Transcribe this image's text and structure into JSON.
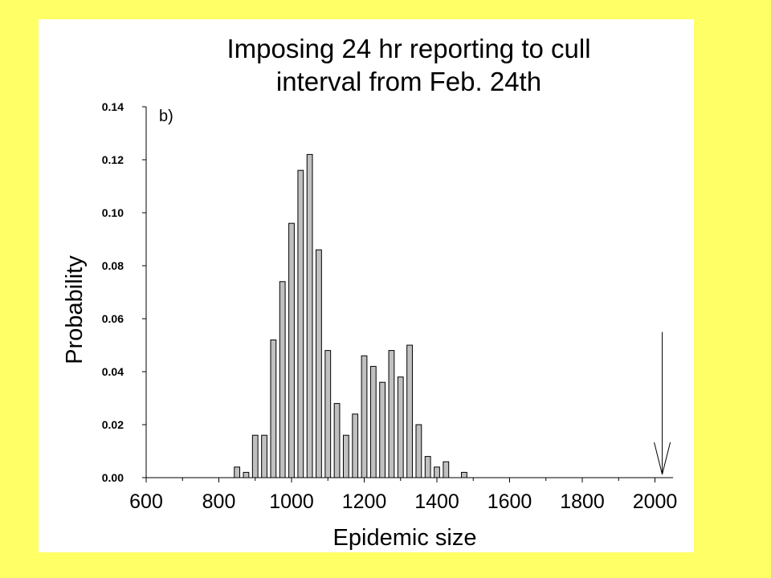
{
  "chart_data": {
    "type": "bar",
    "title": [
      "Imposing 24 hr reporting to cull",
      "interval from Feb. 24th"
    ],
    "panel_label": "b)",
    "xlabel": "Epidemic size",
    "ylabel": "Probability",
    "xlim": [
      600,
      2050
    ],
    "ylim": [
      0,
      0.14
    ],
    "x_ticks": [
      600,
      800,
      1000,
      1200,
      1400,
      1600,
      1800,
      2000
    ],
    "y_ticks": [
      "0.00",
      "0.02",
      "0.04",
      "0.06",
      "0.08",
      "0.10",
      "0.12",
      "0.14"
    ],
    "bar_width": 15,
    "bar_color": "#C0C0C0",
    "x": [
      850,
      875,
      900,
      925,
      950,
      975,
      1000,
      1025,
      1050,
      1075,
      1100,
      1125,
      1150,
      1175,
      1200,
      1225,
      1250,
      1275,
      1300,
      1325,
      1350,
      1375,
      1400,
      1425,
      1475
    ],
    "values": [
      0.004,
      0.002,
      0.016,
      0.016,
      0.052,
      0.074,
      0.096,
      0.116,
      0.122,
      0.086,
      0.048,
      0.028,
      0.016,
      0.024,
      0.046,
      0.042,
      0.036,
      0.048,
      0.038,
      0.05,
      0.02,
      0.008,
      0.004,
      0.006,
      0.002
    ],
    "annotation": {
      "type": "arrow",
      "x": 2020,
      "y_top": 0.055,
      "y_bottom": 0
    }
  }
}
